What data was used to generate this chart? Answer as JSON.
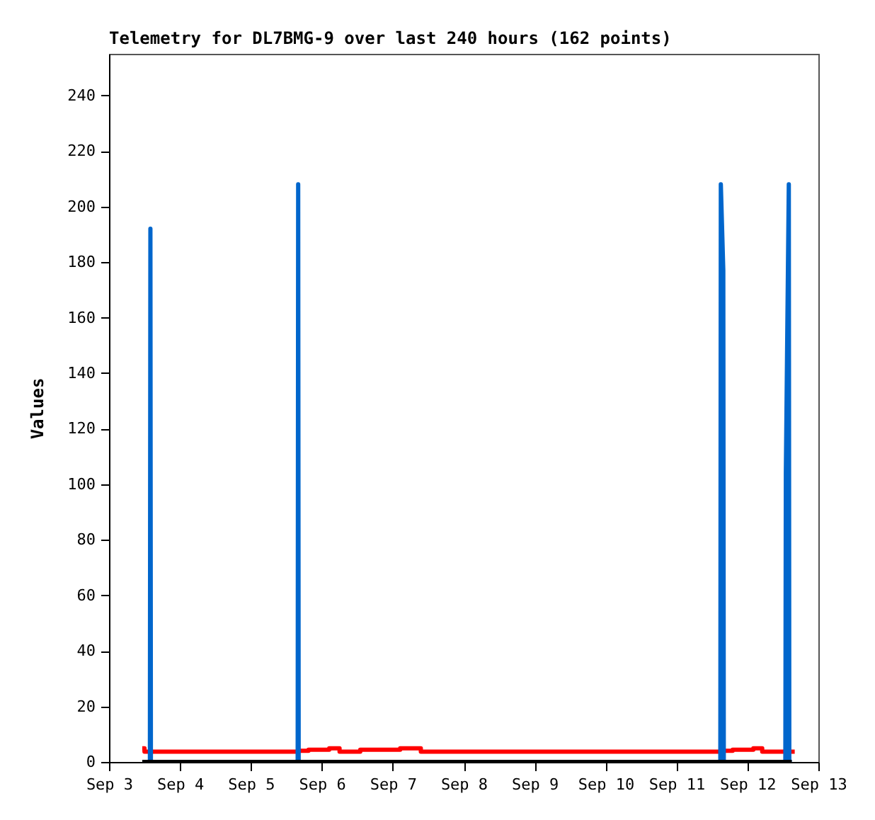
{
  "chart_data": {
    "type": "line",
    "title": "Telemetry for DL7BMG-9 over last 240 hours (162 points)",
    "ylabel": "Values",
    "xlim": [
      "--09-03",
      "--09-13"
    ],
    "xticks": [
      {
        "value": "--09-03",
        "label": "Sep 3"
      },
      {
        "value": "--09-04",
        "label": "Sep 4"
      },
      {
        "value": "--09-05",
        "label": "Sep 5"
      },
      {
        "value": "--09-06",
        "label": "Sep 6"
      },
      {
        "value": "--09-07",
        "label": "Sep 7"
      },
      {
        "value": "--09-08",
        "label": "Sep 8"
      },
      {
        "value": "--09-09",
        "label": "Sep 9"
      },
      {
        "value": "--09-10",
        "label": "Sep 10"
      },
      {
        "value": "--09-11",
        "label": "Sep 11"
      },
      {
        "value": "--09-12",
        "label": "Sep 12"
      },
      {
        "value": "--09-13",
        "label": "Sep 13"
      }
    ],
    "ylim": [
      0,
      255
    ],
    "yticks": [
      0,
      20,
      40,
      60,
      80,
      100,
      120,
      140,
      160,
      180,
      200,
      220,
      240
    ],
    "grid": false,
    "legend": false,
    "marker": "none",
    "series": [
      {
        "type": "step",
        "color": "#ff0000",
        "x": [
          "--09-03T11:15",
          "--09-03T12:00",
          "--09-05T16:00",
          "--09-05T19:30",
          "--09-06T02:30",
          "--09-06T06:00",
          "--09-06T13:00",
          "--09-07T02:30",
          "--09-07T09:30",
          "--09-11T15:30",
          "--09-11T19:00",
          "--09-12T02:00",
          "--09-12T05:00",
          "--09-12T16:00"
        ],
        "values": [
          4.9,
          3.7,
          4.0,
          4.4,
          4.9,
          3.7,
          4.4,
          4.9,
          3.7,
          4.0,
          4.4,
          4.9,
          3.7,
          3.7
        ]
      },
      {
        "type": "line",
        "color": "#0066cc",
        "x": [
          "--09-03T11:15",
          "--09-03T13:50",
          "--09-03T14:00",
          "--09-03T14:10",
          "--09-05T15:50",
          "--09-05T16:00",
          "--09-05T16:10",
          "--09-11T14:50",
          "--09-11T15:00",
          "--09-11T15:50",
          "--09-11T16:00",
          "--09-12T12:50",
          "--09-12T13:00",
          "--09-12T14:00",
          "--09-12T14:10",
          "--09-12T15:00"
        ],
        "values": [
          0,
          0,
          192,
          0,
          0,
          208,
          0,
          0,
          208,
          177,
          0,
          0,
          104,
          208,
          0,
          0
        ]
      },
      {
        "type": "line",
        "color": "#000000",
        "x": [
          "--09-03T11:15",
          "--09-12T15:00"
        ],
        "values": [
          0,
          0
        ]
      }
    ]
  }
}
